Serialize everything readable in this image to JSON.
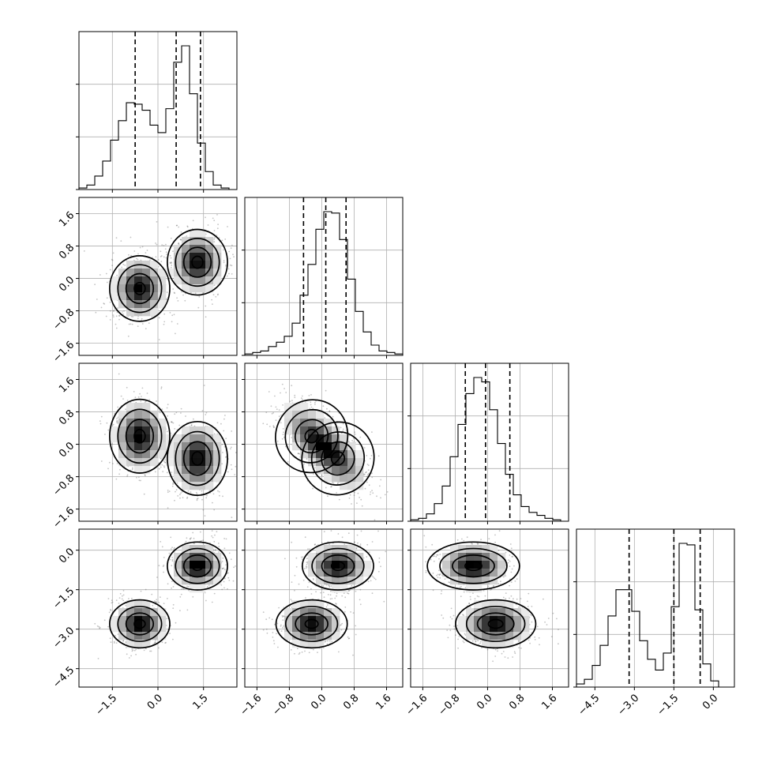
{
  "chart_data": {
    "type": "corner",
    "grid": true,
    "parameters": [
      "",
      "",
      "",
      ""
    ],
    "ranges": [
      [
        -2.6,
        2.6
      ],
      [
        -1.9,
        2.0
      ],
      [
        -1.9,
        2.0
      ],
      [
        -5.2,
        0.8
      ]
    ],
    "ticks": [
      [
        -1.5,
        0.0,
        1.5
      ],
      [
        -1.6,
        -0.8,
        0.0,
        0.8,
        1.6
      ],
      [
        -1.6,
        -0.8,
        0.0,
        0.8,
        1.6
      ],
      [
        -4.5,
        -3.0,
        -1.5,
        0.0
      ]
    ],
    "tick_labels": [
      [
        "−1.5",
        "0.0",
        "1.5"
      ],
      [
        "−1.6",
        "−0.8",
        "0.0",
        "0.8",
        "1.6"
      ],
      [
        "−1.6",
        "−0.8",
        "0.0",
        "0.8",
        "1.6"
      ],
      [
        "−4.5",
        "−3.0",
        "−1.5",
        "0.0"
      ]
    ],
    "quantiles": [
      [
        -0.75,
        0.6,
        1.4
      ],
      [
        -0.45,
        0.1,
        0.6
      ],
      [
        -0.55,
        -0.05,
        0.55
      ],
      [
        -3.2,
        -1.5,
        -0.5
      ]
    ],
    "histograms": [
      [
        0.01,
        0.03,
        0.09,
        0.19,
        0.33,
        0.46,
        0.58,
        0.57,
        0.53,
        0.43,
        0.38,
        0.54,
        0.85,
        0.96,
        0.64,
        0.31,
        0.12,
        0.03,
        0.01,
        0.0
      ],
      [
        0.01,
        0.02,
        0.03,
        0.06,
        0.09,
        0.13,
        0.22,
        0.41,
        0.62,
        0.86,
        0.98,
        0.97,
        0.79,
        0.52,
        0.3,
        0.16,
        0.07,
        0.03,
        0.02,
        0.01
      ],
      [
        0.01,
        0.02,
        0.05,
        0.12,
        0.24,
        0.44,
        0.66,
        0.87,
        0.98,
        0.95,
        0.76,
        0.53,
        0.32,
        0.18,
        0.1,
        0.06,
        0.04,
        0.02,
        0.01,
        0.0
      ],
      [
        0.02,
        0.05,
        0.14,
        0.27,
        0.46,
        0.63,
        0.63,
        0.49,
        0.3,
        0.18,
        0.11,
        0.22,
        0.52,
        0.93,
        0.92,
        0.5,
        0.15,
        0.04,
        0.0,
        0.0
      ]
    ],
    "mixture_modes": [
      {
        "mean": [
          -0.6,
          -0.25,
          0.2,
          -2.8
        ],
        "weight": 0.5
      },
      {
        "mean": [
          1.3,
          0.4,
          -0.35,
          -0.6
        ],
        "weight": 0.5
      }
    ]
  }
}
